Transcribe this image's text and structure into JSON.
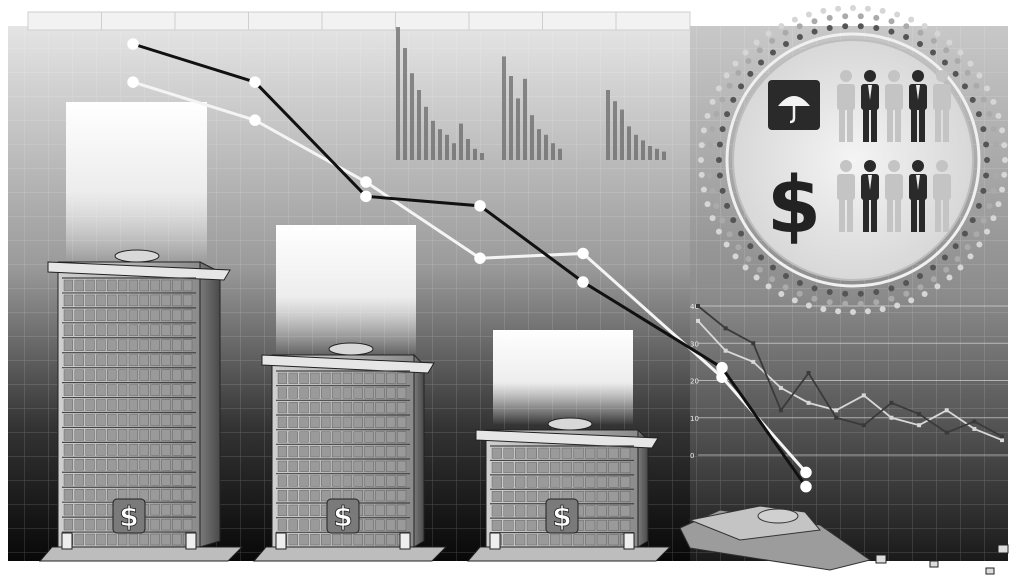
{
  "scene": {
    "subject": "",
    "background_color": "#ffffff",
    "sky_gradient_top": "#e6e6e6",
    "sky_gradient_bottom": "#0a0a0a"
  },
  "buildings": [
    {
      "name": "tall-building",
      "symbol": "$",
      "state": "standing"
    },
    {
      "name": "medium-building",
      "symbol": "$",
      "state": "standing"
    },
    {
      "name": "short-building",
      "symbol": "$",
      "state": "standing"
    },
    {
      "name": "collapsed-building",
      "symbol": "",
      "state": "collapsed"
    }
  ],
  "infographic_circle": {
    "icons": [
      "umbrella-icon",
      "dollar-icon"
    ],
    "rows": [
      {
        "icon": "umbrella-icon",
        "people_count": 5,
        "highlighted": [
          1,
          3
        ]
      },
      {
        "icon": "dollar-icon",
        "symbol": "$",
        "people_count": 5,
        "highlighted": [
          1,
          3
        ]
      }
    ]
  },
  "decline_lines": {
    "dark_line_values": [
      100,
      92,
      68,
      66,
      50,
      32,
      7
    ],
    "light_line_values": [
      92,
      84,
      71,
      55,
      56,
      30,
      10
    ]
  },
  "background_bar_groups": [
    [
      95,
      80,
      62,
      50,
      38,
      28,
      22,
      18,
      12,
      26,
      15,
      8,
      5
    ],
    [
      74,
      60,
      44,
      58,
      32,
      22,
      18,
      12,
      8
    ],
    [
      50,
      42,
      36,
      24,
      18,
      14,
      10,
      8,
      6
    ]
  ],
  "small_line_chart": {
    "y_ticks": [
      "40",
      "30",
      "20",
      "10",
      "0"
    ],
    "series_dark": [
      40,
      34,
      30,
      12,
      22,
      10,
      8,
      14,
      11,
      6,
      9,
      5
    ],
    "series_light": [
      36,
      28,
      25,
      18,
      14,
      12,
      16,
      10,
      8,
      12,
      7,
      4
    ]
  }
}
